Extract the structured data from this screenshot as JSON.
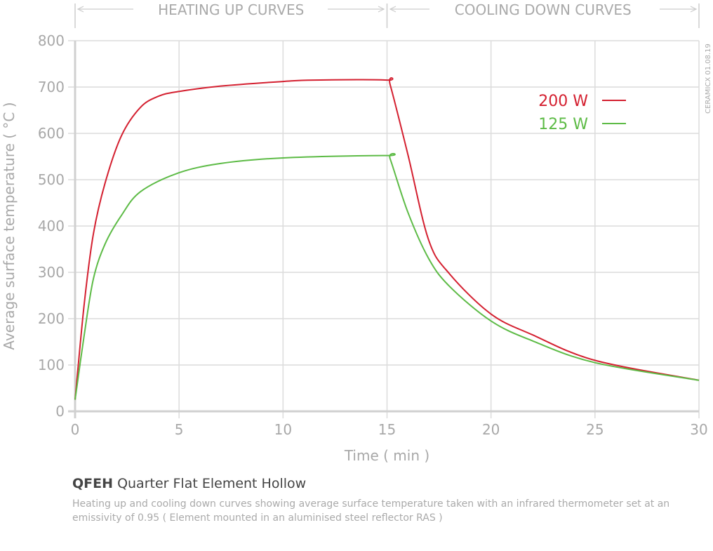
{
  "chart_data": {
    "type": "line",
    "xlabel": "Time ( min )",
    "ylabel": "Average surface temperature ( °C )",
    "xlim": [
      0,
      30
    ],
    "ylim": [
      0,
      800
    ],
    "xticks": [
      0,
      5,
      10,
      15,
      20,
      25,
      30
    ],
    "yticks": [
      0,
      100,
      200,
      300,
      400,
      500,
      600,
      700,
      800
    ],
    "grid": true,
    "legend": "top-right",
    "section_labels": {
      "heating": "HEATING UP CURVES",
      "cooling": "COOLING DOWN CURVES"
    },
    "watermark": "CERAMICX 01.08.19",
    "series": [
      {
        "name": "200 W",
        "color": "#d42030",
        "x": [
          0,
          0.44,
          0.88,
          1.45,
          2.23,
          3.14,
          4.0,
          4.93,
          7,
          10,
          11.5,
          15,
          15.15,
          16,
          17,
          18,
          20,
          22,
          25,
          30
        ],
        "y": [
          25,
          232,
          383,
          494,
          595,
          656,
          680,
          690,
          702,
          712,
          715,
          715,
          705,
          555,
          370,
          297,
          210,
          165,
          110,
          67
        ]
      },
      {
        "name": "125 W",
        "color": "#5dbb46",
        "x": [
          0,
          0.44,
          0.88,
          1.45,
          2.23,
          3.14,
          4.93,
          7,
          10,
          15,
          15.15,
          16,
          17,
          18,
          20,
          22,
          25,
          30
        ],
        "y": [
          25,
          165,
          286,
          362,
          423,
          474,
          514,
          535,
          547,
          552,
          545,
          430,
          330,
          270,
          195,
          152,
          105,
          67
        ]
      }
    ]
  },
  "caption": {
    "code": "QFEH",
    "title": "Quarter Flat Element Hollow",
    "description": "Heating up and cooling down curves showing average surface temperature taken with an infrared thermometer set at an emissivity of 0.95  ( Element mounted in an aluminised steel reflector RAS )"
  }
}
